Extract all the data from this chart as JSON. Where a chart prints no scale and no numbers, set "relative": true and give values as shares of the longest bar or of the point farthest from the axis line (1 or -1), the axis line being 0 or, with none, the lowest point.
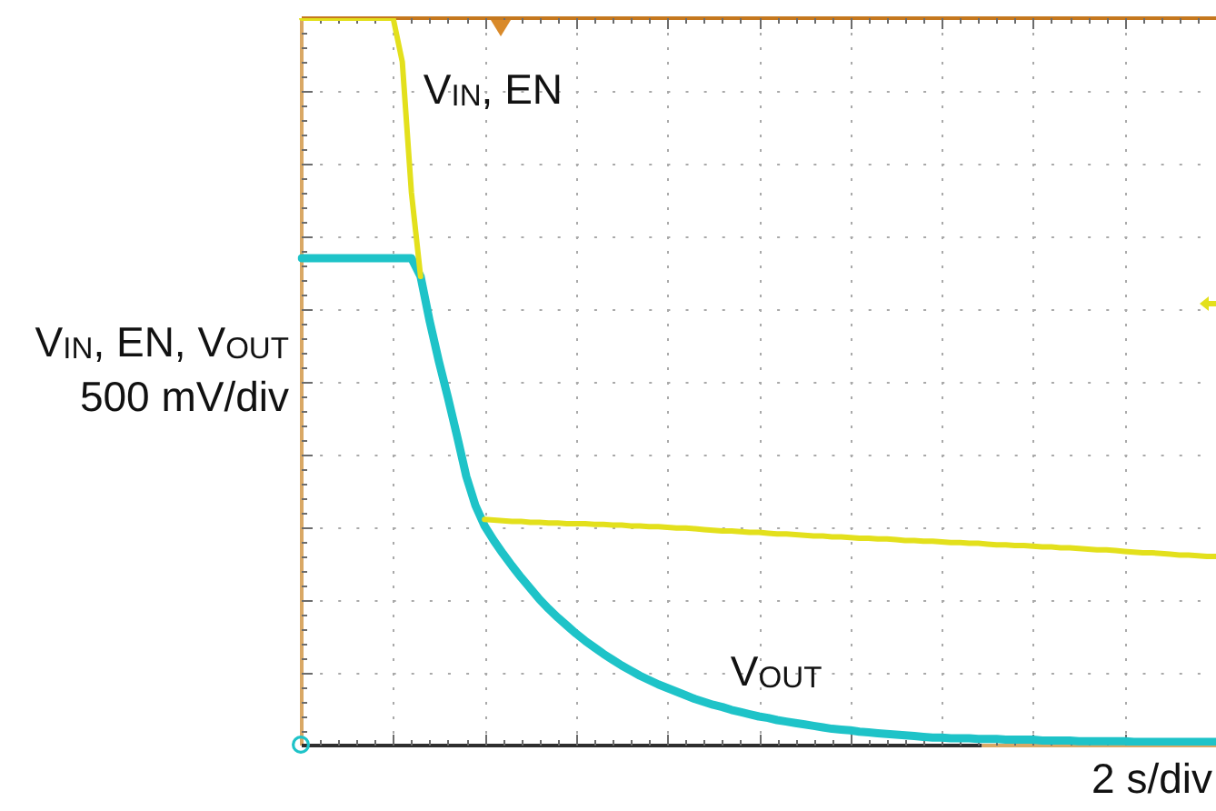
{
  "chart_data": {
    "type": "line",
    "relative": true,
    "grid": true,
    "ylabel": "V$_{IN}$, EN, V$_{OUT}$\n500 mV/div",
    "xlabel": "2 s/div",
    "categories": [
      null,
      null,
      null,
      null,
      null,
      null,
      null,
      null,
      null,
      null,
      null,
      null,
      null,
      null,
      null,
      null,
      null,
      null,
      null,
      null,
      null,
      null,
      null,
      null,
      null,
      null,
      null,
      null,
      null,
      null,
      null,
      null,
      null,
      null,
      null,
      null,
      null,
      null,
      null,
      null,
      null,
      null,
      null,
      null,
      null,
      null,
      null,
      null,
      null,
      null,
      null,
      null,
      null,
      null,
      null,
      null,
      null,
      null,
      null,
      null,
      null,
      null,
      null,
      null,
      null,
      null,
      null,
      null,
      null,
      null,
      null,
      null,
      null,
      null,
      null,
      null,
      null,
      null,
      null,
      null,
      null,
      null,
      null,
      null,
      null,
      null,
      null,
      null,
      null,
      null,
      null,
      null,
      null,
      null,
      null,
      null,
      null,
      null,
      null,
      null,
      null
    ],
    "series": [
      {
        "name": "V$_{IN}$, EN",
        "color": "#e3e01c",
        "values": [
          1,
          1,
          1,
          1,
          1,
          1,
          1,
          1,
          1,
          1,
          1,
          0.94,
          0.76,
          0.645,
          null,
          null,
          null,
          null,
          null,
          null,
          0.311,
          0.31,
          0.309,
          0.308,
          0.308,
          0.307,
          0.307,
          0.306,
          0.306,
          0.305,
          0.305,
          0.305,
          0.304,
          0.304,
          0.303,
          0.303,
          0.302,
          0.302,
          0.301,
          0.301,
          0.3,
          0.299,
          0.299,
          0.298,
          0.297,
          0.296,
          0.295,
          0.295,
          0.294,
          0.293,
          0.293,
          0.292,
          0.291,
          0.291,
          0.29,
          0.289,
          0.288,
          0.288,
          0.287,
          0.287,
          0.286,
          0.285,
          0.285,
          0.284,
          0.284,
          0.283,
          0.282,
          0.282,
          0.281,
          0.281,
          0.28,
          0.279,
          0.279,
          0.278,
          0.278,
          0.277,
          0.276,
          0.276,
          0.275,
          0.275,
          0.274,
          0.273,
          0.273,
          0.272,
          0.272,
          0.271,
          0.27,
          0.269,
          0.269,
          0.268,
          0.267,
          0.266,
          0.265,
          0.265,
          0.264,
          0.263,
          0.262,
          0.262,
          0.261,
          0.26,
          0.26
        ]
      },
      {
        "name": "V$_{OUT}$",
        "color": "#1ec3c8",
        "values": [
          0.67,
          0.67,
          0.67,
          0.67,
          0.67,
          0.67,
          0.67,
          0.67,
          0.67,
          0.67,
          0.67,
          0.67,
          0.67,
          0.645,
          0.583,
          0.528,
          0.478,
          0.425,
          0.37,
          0.33,
          0.302,
          0.282,
          0.264,
          0.247,
          0.231,
          0.216,
          0.201,
          0.188,
          0.176,
          0.165,
          0.154,
          0.144,
          0.135,
          0.126,
          0.118,
          0.11,
          0.103,
          0.096,
          0.09,
          0.084,
          0.079,
          0.074,
          0.069,
          0.064,
          0.06,
          0.056,
          0.053,
          0.049,
          0.046,
          0.043,
          0.04,
          0.038,
          0.035,
          0.033,
          0.031,
          0.029,
          0.027,
          0.025,
          0.023,
          0.022,
          0.021,
          0.019,
          0.018,
          0.017,
          0.016,
          0.015,
          0.014,
          0.013,
          0.012,
          0.011,
          0.011,
          0.01,
          0.01,
          0.01,
          0.009,
          0.009,
          0.009,
          0.008,
          0.008,
          0.008,
          0.008,
          0.007,
          0.007,
          0.007,
          0.007,
          0.006,
          0.006,
          0.006,
          0.006,
          0.006,
          0.006,
          0.005,
          0.005,
          0.005,
          0.005,
          0.005,
          0.005,
          0.005,
          0.005,
          0.005,
          0.005
        ]
      }
    ]
  }
}
